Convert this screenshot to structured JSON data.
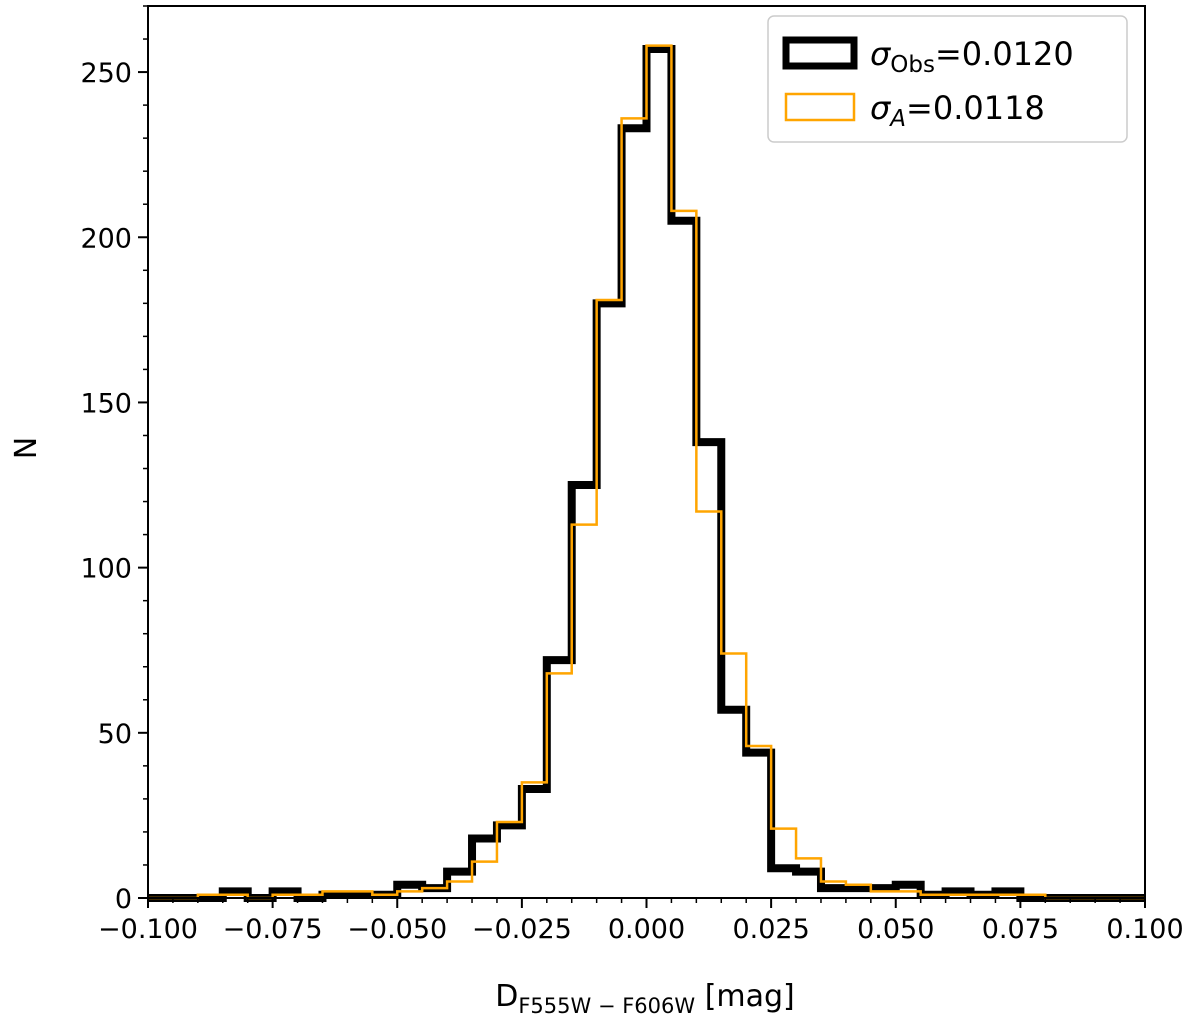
{
  "chart_data": {
    "type": "histogram",
    "xlabel": "D",
    "xlabel_sub": "F555W − F606W",
    "xlabel_unit": " [mag]",
    "ylabel": "N",
    "xlim": [
      -0.1,
      0.1
    ],
    "ylim": [
      0,
      270
    ],
    "grid": false,
    "legend_placement": "top-right",
    "x_ticks": [
      -0.1,
      -0.075,
      -0.05,
      -0.025,
      0.0,
      0.025,
      0.05,
      0.075,
      0.1
    ],
    "x_tick_labels": [
      "−0.100",
      "−0.075",
      "−0.050",
      "−0.025",
      "0.000",
      "0.025",
      "0.050",
      "0.075",
      "0.100"
    ],
    "y_ticks": [
      0,
      50,
      100,
      150,
      200,
      250
    ],
    "y_tick_labels": [
      "0",
      "50",
      "100",
      "150",
      "200",
      "250"
    ],
    "bin_edges": [
      -0.1,
      -0.095,
      -0.09,
      -0.085,
      -0.08,
      -0.075,
      -0.07,
      -0.065,
      -0.06,
      -0.055,
      -0.05,
      -0.045,
      -0.04,
      -0.035,
      -0.03,
      -0.025,
      -0.02,
      -0.015,
      -0.01,
      -0.005,
      0.0,
      0.005,
      0.01,
      0.015,
      0.02,
      0.025,
      0.03,
      0.035,
      0.04,
      0.045,
      0.05,
      0.055,
      0.06,
      0.065,
      0.07,
      0.075,
      0.08,
      0.085,
      0.09,
      0.095,
      0.1
    ],
    "series": [
      {
        "name_symbol": "σ",
        "name_sub": "Obs",
        "name_value": "=0.0120",
        "color": "#000000",
        "values": [
          0,
          0,
          0,
          2,
          0,
          2,
          0,
          1,
          1,
          1,
          4,
          3,
          8,
          18,
          22,
          33,
          72,
          125,
          180,
          233,
          257,
          205,
          138,
          57,
          44,
          9,
          8,
          3,
          3,
          3,
          4,
          1,
          2,
          1,
          2,
          0,
          0,
          0,
          0,
          0
        ]
      },
      {
        "name_symbol": "σ",
        "name_sub": "A",
        "name_value": "=0.0118",
        "color": "#FFA500",
        "values": [
          0,
          0,
          1,
          1,
          0,
          1,
          1,
          2,
          2,
          1,
          2,
          3,
          5,
          11,
          23,
          35,
          68,
          113,
          181,
          236,
          258,
          208,
          117,
          74,
          46,
          21,
          12,
          5,
          4,
          2,
          2,
          1,
          1,
          1,
          1,
          1,
          0,
          0,
          0,
          0
        ]
      }
    ]
  }
}
